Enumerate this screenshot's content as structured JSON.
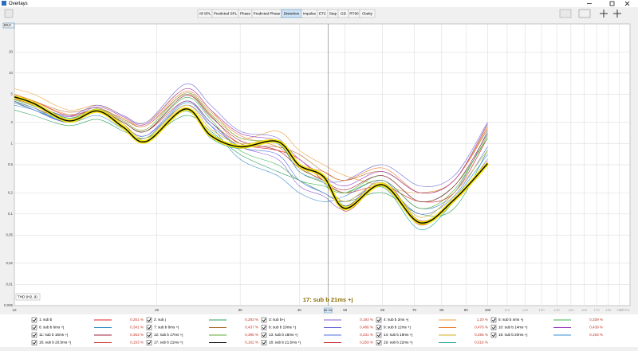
{
  "ui": {
    "window_title": "Overlays",
    "tabs": [
      "All SPL",
      "Predicted SPL",
      "Phase",
      "Predicted Phase",
      "Distortion",
      "Impulse",
      "ETC",
      "Step",
      "GD",
      "RT60",
      "Clarity"
    ],
    "active_tab": 4
  },
  "chart_data": {
    "type": "line",
    "log_x": true,
    "log_y": true,
    "grid": true,
    "annotation": "THD (H2..9)",
    "cursor": {
      "x": 46,
      "label": "46 Hz",
      "series_label": "17: sub b 21ms +j"
    },
    "xlim": [
      10,
      200
    ],
    "ylim": [
      0.005,
      50
    ],
    "xticks": [
      10,
      20,
      30,
      40,
      50,
      60,
      70,
      80,
      90,
      100,
      110,
      120,
      130,
      140,
      150,
      160,
      170,
      180,
      190,
      {
        "value": 200,
        "label": "200Hz"
      }
    ],
    "yticks": [
      {
        "value": 50,
        "label": "50,0"
      },
      20,
      10,
      5,
      2,
      1,
      {
        "value": 0.5,
        "label": "0,5"
      },
      {
        "value": 0.2,
        "label": "0,2"
      },
      {
        "value": 0.1,
        "label": "0,1"
      },
      {
        "value": 0.05,
        "label": "0,05"
      },
      {
        "value": 0.02,
        "label": "0,02"
      },
      {
        "value": 0.01,
        "label": "0,01"
      },
      {
        "value": 0.005,
        "label": "0,005"
      }
    ],
    "x": [
      10,
      11,
      13,
      15,
      17,
      19,
      23,
      26,
      30,
      36,
      40,
      45,
      50,
      60,
      72,
      85,
      100
    ],
    "series": [
      {
        "name": "1: sub b",
        "color": "#e02020",
        "thd": "0,251 %",
        "values": [
          5,
          4,
          2.5,
          3,
          2,
          1.5,
          4,
          2,
          1,
          0.8,
          0.6,
          0.3,
          0.2,
          0.25,
          0.15,
          0.2,
          1.2
        ]
      },
      {
        "name": "2: sub j",
        "color": "#2e9e5e",
        "thd": "0,283 %",
        "values": [
          3,
          2.5,
          1.8,
          2.2,
          1.5,
          1.2,
          2.5,
          1.5,
          0.7,
          0.4,
          0.3,
          0.2,
          0.15,
          0.2,
          0.1,
          0.12,
          0.8
        ]
      },
      {
        "name": "3: sub b+j",
        "color": "#8a5ed0",
        "thd": "0,193 %",
        "values": [
          4,
          3,
          2,
          3,
          1.8,
          1.3,
          3.5,
          1.8,
          0.9,
          0.6,
          0.25,
          0.18,
          0.12,
          0.3,
          0.08,
          0.15,
          0.6
        ]
      },
      {
        "name": "4: sub b 2ms +j",
        "color": "#f0a040",
        "thd": "1,20 %",
        "values": [
          6,
          5,
          3,
          3.5,
          2.5,
          2,
          6,
          3,
          1.2,
          1.5,
          0.8,
          0.5,
          0.35,
          0.25,
          0.2,
          0.3,
          1.8
        ]
      },
      {
        "name": "5: sub b 4ms +j",
        "color": "#3cb44b",
        "thd": "0,339 %",
        "values": [
          4,
          3,
          2.2,
          2.8,
          2,
          1.5,
          4.5,
          2.2,
          0.8,
          0.5,
          0.3,
          0.25,
          0.2,
          0.35,
          0.15,
          0.25,
          1.2
        ]
      },
      {
        "name": "6: sub b 6ms +j",
        "color": "#3a8fc8",
        "thd": "0,341 %",
        "values": [
          3.5,
          3,
          2,
          2.5,
          1.6,
          1.2,
          3.8,
          1.8,
          0.6,
          0.35,
          0.2,
          0.15,
          0.18,
          0.3,
          0.12,
          0.2,
          1.5
        ]
      },
      {
        "name": "7: sub b 8ms +j",
        "color": "#b07030",
        "thd": "0,437 %",
        "values": [
          5,
          4,
          2.8,
          3.2,
          2.2,
          1.8,
          5,
          2.5,
          1,
          0.9,
          0.7,
          0.4,
          0.3,
          0.4,
          0.2,
          0.3,
          1.6
        ]
      },
      {
        "name": "8: sub b 10ms +j",
        "color": "#6a6ad8",
        "thd": "0,486 %",
        "values": [
          4.5,
          3.5,
          2.5,
          3.5,
          2.5,
          2,
          7,
          3.5,
          1.5,
          1.2,
          0.5,
          0.3,
          0.3,
          0.5,
          0.25,
          0.35,
          2
        ]
      },
      {
        "name": "9: sub b 12ms +j",
        "color": "#f08030",
        "thd": "0,476 %",
        "values": [
          5,
          4,
          2.6,
          3,
          2.3,
          1.8,
          5.5,
          2.8,
          1.3,
          0.9,
          0.5,
          0.4,
          0.3,
          0.45,
          0.2,
          0.3,
          1.7
        ]
      },
      {
        "name": "10: sub b 14ms +j",
        "color": "#a040c0",
        "thd": "0,439 %",
        "values": [
          4.5,
          3.6,
          2.4,
          3.3,
          2.4,
          1.9,
          6,
          3,
          1.4,
          1.1,
          0.6,
          0.35,
          0.25,
          0.4,
          0.2,
          0.3,
          1.9
        ]
      },
      {
        "name": "11: sub b 16ms +j",
        "color": "#a02040",
        "thd": "0,363 %",
        "values": [
          4,
          3.2,
          2.2,
          3,
          2,
          1.5,
          4.8,
          2.4,
          1.1,
          0.8,
          0.45,
          0.3,
          0.22,
          0.35,
          0.15,
          0.25,
          1.4
        ]
      },
      {
        "name": "12: sub b 17ms +j",
        "color": "#60a830",
        "thd": "0,395 %",
        "values": [
          4.2,
          3.4,
          2.3,
          3.1,
          2.1,
          1.6,
          5.2,
          2.6,
          1.2,
          1,
          0.4,
          0.28,
          0.2,
          0.3,
          0.12,
          0.22,
          1.3
        ]
      },
      {
        "name": "13: sub b 18ms +j",
        "color": "#5070e0",
        "thd": "0,231 %",
        "values": [
          3.8,
          3,
          2,
          2.8,
          1.8,
          1.3,
          4,
          2,
          0.9,
          0.7,
          0.3,
          0.2,
          0.15,
          0.25,
          0.1,
          0.18,
          0.9
        ]
      },
      {
        "name": "14: sub b 19ms +j",
        "color": "#d0b020",
        "thd": "0,255 %",
        "values": [
          4.4,
          3.6,
          2.2,
          3,
          1.9,
          1.2,
          3.5,
          1.6,
          1,
          1.1,
          0.45,
          0.3,
          0.15,
          0.28,
          0.09,
          0.2,
          0.8
        ]
      },
      {
        "name": "15: sub b 20ms +j",
        "color": "#3090d0",
        "thd": "0,193 %",
        "values": [
          4,
          3.2,
          2,
          2.8,
          1.7,
          1.1,
          3.2,
          1.4,
          0.9,
          1,
          0.4,
          0.28,
          0.13,
          0.27,
          0.08,
          0.17,
          0.7
        ]
      },
      {
        "name": "16: sub b 20.5ms +j",
        "color": "#d03030",
        "thd": "0,153 %",
        "values": [
          4.6,
          3.8,
          2.1,
          2.9,
          1.8,
          1.1,
          3.2,
          1.35,
          0.92,
          1.05,
          0.5,
          0.33,
          0.13,
          0.27,
          0.08,
          0.16,
          0.55
        ]
      },
      {
        "name": "17: sub b 21ms +j",
        "color": "#000000",
        "highlight": "#f5e60a",
        "thd": "0,162 %",
        "values": [
          4.6,
          3.7,
          2.1,
          2.9,
          1.7,
          1.07,
          3.1,
          1.3,
          0.9,
          1.07,
          0.49,
          0.34,
          0.12,
          0.26,
          0.075,
          0.16,
          0.52
        ]
      },
      {
        "name": "18: sub b 21.5ms +j",
        "color": "#c02020",
        "thd": "0,259 %",
        "values": [
          4.3,
          3.5,
          2.1,
          3,
          1.6,
          1.05,
          3,
          1.25,
          0.88,
          1.08,
          0.48,
          0.35,
          0.11,
          0.25,
          0.07,
          0.16,
          0.5
        ]
      },
      {
        "name": "19: sub b 22ms +j",
        "color": "#20a0a0",
        "thd": "0,516 %",
        "values": [
          4.5,
          3.8,
          2.3,
          2.9,
          1.7,
          1.1,
          2.9,
          1.2,
          0.85,
          1.1,
          0.5,
          0.36,
          0.13,
          0.24,
          0.06,
          0.15,
          0.5
        ]
      }
    ]
  }
}
